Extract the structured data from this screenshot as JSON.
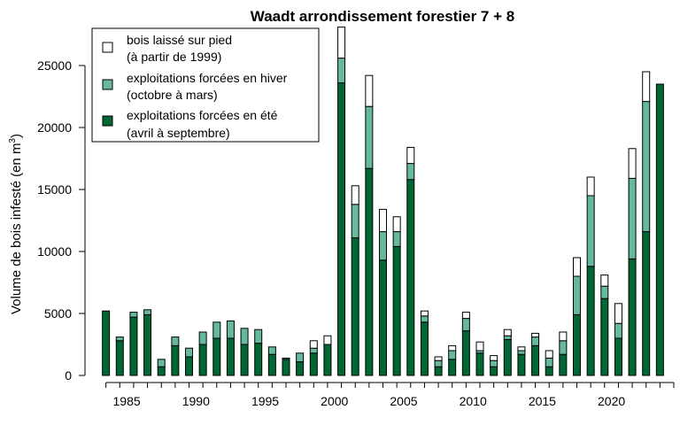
{
  "chart_data": {
    "type": "bar",
    "stacked": true,
    "title": "Waadt arrondissement forestier 7 + 8",
    "xlabel": "",
    "ylabel": "Volume de bois infesté (en m",
    "ylabel_sup": "3",
    "ylabel_end": ")",
    "xlim": [
      1983,
      2025
    ],
    "ylim": [
      0,
      28000
    ],
    "x_ticks": [
      1985,
      1990,
      1995,
      2000,
      2005,
      2010,
      2015,
      2020
    ],
    "y_ticks": [
      0,
      5000,
      10000,
      15000,
      20000,
      25000
    ],
    "y_tick_labels": [
      "0",
      "5000",
      "10000",
      "15000",
      "20000",
      "25000"
    ],
    "grid": false,
    "legend_position": "top-left",
    "categories": [
      1984,
      1985,
      1986,
      1987,
      1988,
      1989,
      1990,
      1991,
      1992,
      1993,
      1994,
      1995,
      1996,
      1997,
      1998,
      1999,
      2000,
      2001,
      2002,
      2003,
      2004,
      2005,
      2006,
      2007,
      2008,
      2009,
      2010,
      2011,
      2012,
      2013,
      2014,
      2015,
      2016,
      2017,
      2018,
      2019,
      2020,
      2021,
      2022,
      2023,
      2024
    ],
    "series": [
      {
        "key": "ete",
        "legend_line1": "exploitations forcées en été",
        "legend_line2": "(avril à septembre)",
        "color": "#006633",
        "values": [
          5200,
          2800,
          4700,
          4900,
          700,
          2400,
          1500,
          2500,
          3000,
          3000,
          2500,
          2600,
          1700,
          1300,
          1100,
          1800,
          2500,
          23600,
          11100,
          16700,
          9300,
          10400,
          15800,
          4300,
          700,
          1300,
          3600,
          1800,
          700,
          2900,
          1700,
          2400,
          700,
          1700,
          4900,
          8800,
          6200,
          3000,
          9400,
          11600,
          23500
        ]
      },
      {
        "key": "hiver",
        "legend_line1": "exploitations forcées en hiver",
        "legend_line2": "(octobre à mars)",
        "color": "#66B89E",
        "values": [
          0,
          300,
          400,
          400,
          600,
          700,
          700,
          1000,
          1300,
          1400,
          1300,
          1100,
          600,
          100,
          700,
          400,
          0,
          2000,
          2700,
          5000,
          2300,
          1200,
          1300,
          500,
          500,
          700,
          1000,
          200,
          500,
          300,
          300,
          700,
          700,
          1100,
          3100,
          5700,
          1000,
          1200,
          6500,
          10500,
          0
        ]
      },
      {
        "key": "sur_pied",
        "legend_line1": "bois laissé sur pied",
        "legend_line2": "(à partir de 1999)",
        "color": "#FFFFFF",
        "values": [
          0,
          0,
          0,
          0,
          0,
          0,
          0,
          0,
          0,
          0,
          0,
          0,
          0,
          0,
          0,
          600,
          700,
          2500,
          1500,
          2500,
          1800,
          1200,
          1300,
          400,
          300,
          400,
          500,
          700,
          400,
          500,
          300,
          300,
          600,
          700,
          1500,
          1500,
          900,
          1600,
          2400,
          2400,
          0
        ]
      }
    ]
  }
}
